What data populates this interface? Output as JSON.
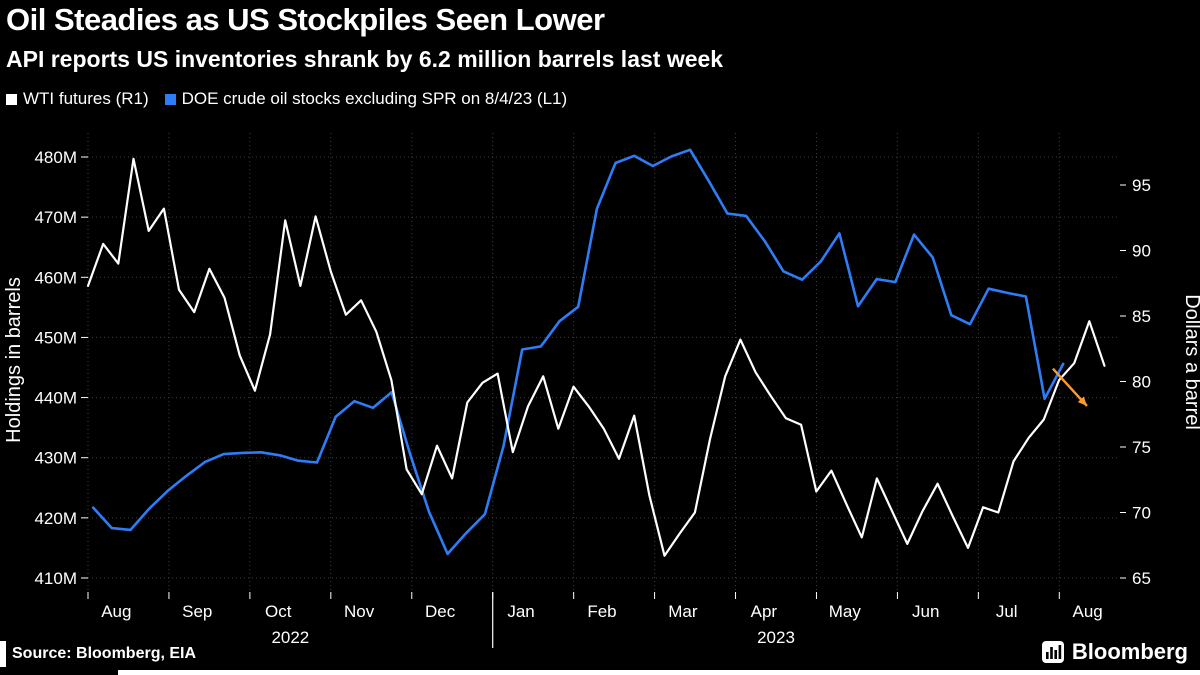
{
  "header": {
    "title": "Oil Steadies as US Stockpiles Seen Lower",
    "subtitle": "API reports US inventories shrank by 6.2 million barrels last week"
  },
  "legend": [
    {
      "label": "WTI futures (R1)",
      "color": "#ffffff"
    },
    {
      "label": "DOE crude oil stocks excluding SPR on 8/4/23 (L1)",
      "color": "#2e7df6"
    }
  ],
  "chart_data": {
    "type": "line",
    "title": "Oil Steadies as US Stockpiles Seen Lower",
    "subtitle": "API reports US inventories shrank by 6.2 million barrels last week",
    "colors": {
      "background": "#000000",
      "grid": "#3f3f3f",
      "text": "#ffffff",
      "wti": "#ffffff",
      "doe": "#2e7df6",
      "arrow": "#ff9a2b"
    },
    "left_axis": {
      "label": "Holdings in barrels",
      "range": [
        410,
        480
      ],
      "ticks": [
        {
          "value": 480,
          "label": "480M"
        },
        {
          "value": 470,
          "label": "470M"
        },
        {
          "value": 460,
          "label": "460M"
        },
        {
          "value": 450,
          "label": "450M"
        },
        {
          "value": 440,
          "label": "440M"
        },
        {
          "value": 430,
          "label": "430M"
        },
        {
          "value": 420,
          "label": "420M"
        },
        {
          "value": 410,
          "label": "410M"
        }
      ]
    },
    "right_axis": {
      "label": "Dollars a barrel",
      "range": [
        65,
        95
      ],
      "ticks": [
        {
          "value": 95,
          "label": "95"
        },
        {
          "value": 90,
          "label": "90"
        },
        {
          "value": 85,
          "label": "85"
        },
        {
          "value": 80,
          "label": "80"
        },
        {
          "value": 75,
          "label": "75"
        },
        {
          "value": 70,
          "label": "70"
        },
        {
          "value": 65,
          "label": "65"
        }
      ]
    },
    "x_axis": {
      "month_labels": [
        "Aug",
        "Sep",
        "Oct",
        "Nov",
        "Dec",
        "Jan",
        "Feb",
        "Mar",
        "Apr",
        "May",
        "Jun",
        "Jul",
        "Aug"
      ],
      "year_labels": [
        "2022",
        "2023"
      ]
    },
    "series": [
      {
        "name": "WTI futures (R1)",
        "axis": "right",
        "color": "#ffffff",
        "x_span": [
          0.0,
          0.985
        ],
        "values": [
          87.3,
          90.5,
          89.0,
          97.0,
          91.5,
          93.2,
          87.0,
          85.3,
          88.6,
          86.4,
          82.0,
          79.3,
          83.6,
          92.3,
          87.3,
          92.6,
          88.4,
          85.1,
          86.2,
          83.8,
          80.1,
          73.3,
          71.4,
          75.1,
          72.6,
          78.4,
          79.9,
          80.6,
          74.6,
          78.1,
          80.4,
          76.4,
          79.6,
          78.1,
          76.4,
          74.1,
          77.4,
          71.3,
          66.7,
          68.4,
          70.0,
          75.6,
          80.4,
          83.2,
          80.7,
          78.9,
          77.2,
          76.7,
          71.6,
          73.2,
          70.6,
          68.1,
          72.6,
          70.1,
          67.6,
          70.1,
          72.2,
          69.7,
          67.3,
          70.4,
          70.0,
          73.9,
          75.7,
          77.1,
          80.1,
          81.4,
          84.6,
          81.2
        ]
      },
      {
        "name": "DOE crude oil stocks excluding SPR on 8/4/23 (L1)",
        "axis": "left",
        "color": "#2e7df6",
        "x_span": [
          0.005,
          0.945
        ],
        "values": [
          421.7,
          418.3,
          418.0,
          421.5,
          424.5,
          427.0,
          429.3,
          430.6,
          430.8,
          430.9,
          430.4,
          429.5,
          429.2,
          436.8,
          439.4,
          438.3,
          440.9,
          430.5,
          421.0,
          414.0,
          417.5,
          420.6,
          432.0,
          448.0,
          448.5,
          452.7,
          455.1,
          471.4,
          479.0,
          480.2,
          478.5,
          480.1,
          481.2,
          476.0,
          470.6,
          470.2,
          466.0,
          461.0,
          459.6,
          462.6,
          467.3,
          455.2,
          459.7,
          459.2,
          467.1,
          463.3,
          453.7,
          452.2,
          458.1,
          457.4,
          456.8,
          439.8,
          445.6
        ]
      }
    ],
    "annotation": {
      "type": "arrow",
      "color": "#ff9a2b",
      "axis": "left",
      "from": {
        "x": 0.935,
        "value": 444.8
      },
      "to": {
        "x": 0.968,
        "value": 438.6
      }
    }
  },
  "footer": {
    "source": "Source: Bloomberg, EIA",
    "brand": "Bloomberg"
  }
}
